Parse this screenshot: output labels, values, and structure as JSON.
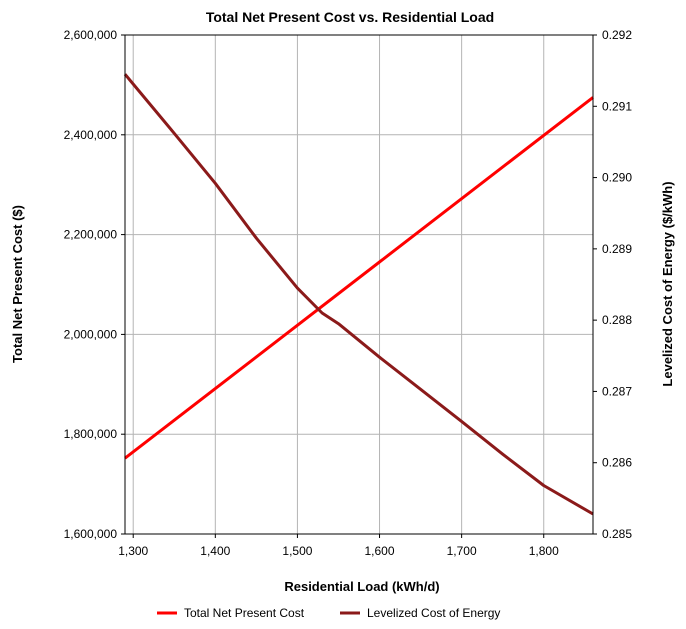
{
  "chart_data": {
    "type": "line",
    "title": "Total Net Present Cost vs. Residential Load",
    "xlabel": "Residential Load (kWh/d)",
    "ylabel_left": "Total Net Present Cost ($)",
    "ylabel_right": "Levelized Cost of Energy ($/kWh)",
    "xlim": [
      1290,
      1860
    ],
    "ylim_left": [
      1600000,
      2600000
    ],
    "ylim_right": [
      0.285,
      0.292
    ],
    "x_ticks": [
      1300,
      1400,
      1500,
      1600,
      1700,
      1800
    ],
    "x_tick_labels": [
      "1,300",
      "1,400",
      "1,500",
      "1,600",
      "1,700",
      "1,800"
    ],
    "y_left_ticks": [
      1600000,
      1800000,
      2000000,
      2200000,
      2400000,
      2600000
    ],
    "y_left_tick_labels": [
      "1,600,000",
      "1,800,000",
      "2,000,000",
      "2,200,000",
      "2,400,000",
      "2,600,000"
    ],
    "y_right_ticks": [
      0.285,
      0.286,
      0.287,
      0.288,
      0.289,
      0.29,
      0.291,
      0.292
    ],
    "y_right_tick_labels": [
      "0.285",
      "0.286",
      "0.287",
      "0.288",
      "0.289",
      "0.290",
      "0.291",
      "0.292"
    ],
    "grid": true,
    "legend_position": "bottom",
    "series": [
      {
        "name": "Total Net Present Cost",
        "axis": "left",
        "color": "#ff0000",
        "points": [
          [
            1290,
            1752000
          ],
          [
            1860,
            2475000
          ]
        ]
      },
      {
        "name": "Levelized Cost of Energy",
        "axis": "right",
        "color": "#8b1a1a",
        "points": [
          [
            1290,
            0.29145
          ],
          [
            1350,
            0.29062
          ],
          [
            1400,
            0.28992
          ],
          [
            1450,
            0.28915
          ],
          [
            1500,
            0.28845
          ],
          [
            1530,
            0.2881
          ],
          [
            1550,
            0.28795
          ],
          [
            1600,
            0.28748
          ],
          [
            1650,
            0.28703
          ],
          [
            1700,
            0.28658
          ],
          [
            1750,
            0.28612
          ],
          [
            1800,
            0.28568
          ],
          [
            1860,
            0.28528
          ]
        ]
      }
    ]
  }
}
